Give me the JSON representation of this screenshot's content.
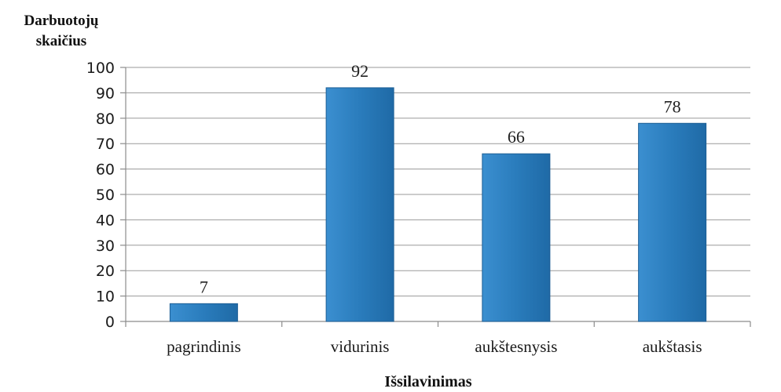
{
  "chart_data": {
    "type": "bar",
    "ylabel_lines": [
      "Darbuotojų",
      "skaičius"
    ],
    "xlabel": "Išsilavinimas",
    "categories": [
      "pagrindinis",
      "vidurinis",
      "aukštesnysis",
      "aukštasis"
    ],
    "values": [
      7,
      92,
      66,
      78
    ],
    "data_labels": [
      "7",
      "92",
      "66",
      "78"
    ],
    "yticks": [
      0,
      10,
      20,
      30,
      40,
      50,
      60,
      70,
      80,
      90,
      100
    ],
    "ylim": [
      0,
      100
    ],
    "grid": true,
    "legend": "none",
    "bar_color": "#2878b8",
    "bar_edge_color": "#1d5f95"
  }
}
